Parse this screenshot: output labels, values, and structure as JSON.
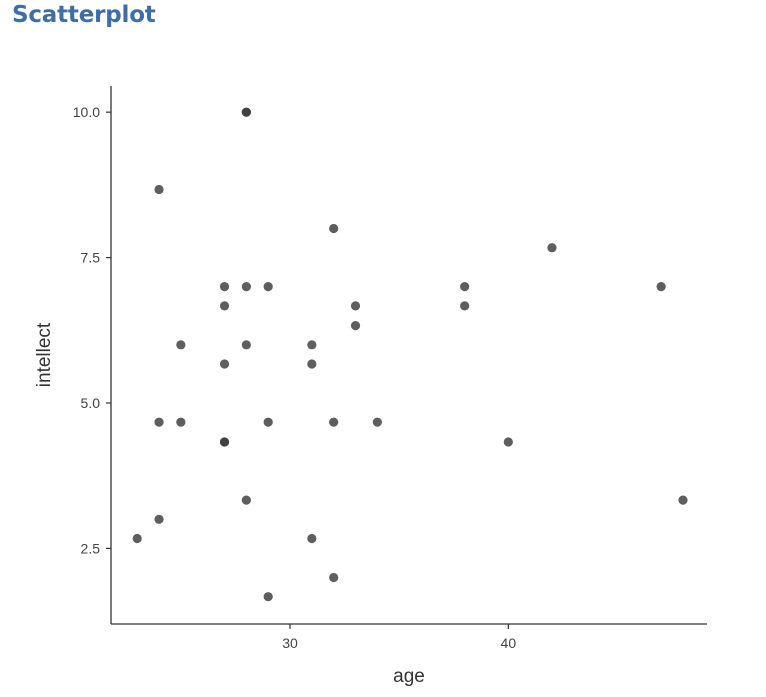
{
  "page": {
    "title": "Scatterplot"
  },
  "chart_data": {
    "type": "scatter",
    "title": "",
    "xlabel": "age",
    "ylabel": "intellect",
    "xlim": [
      21.8,
      49.1
    ],
    "ylim": [
      1.2,
      10.45
    ],
    "x_ticks": [
      30,
      40
    ],
    "x_tick_labels": [
      "30",
      "40"
    ],
    "y_ticks": [
      2.5,
      5.0,
      7.5,
      10.0
    ],
    "y_tick_labels": [
      "2.5",
      "5.0",
      "7.5",
      "10.0"
    ],
    "grid": false,
    "point_color": "#3a3a3a",
    "points": [
      {
        "x": 23,
        "y": 2.67
      },
      {
        "x": 24,
        "y": 8.67
      },
      {
        "x": 24,
        "y": 4.67
      },
      {
        "x": 24,
        "y": 3.0
      },
      {
        "x": 25,
        "y": 6.0
      },
      {
        "x": 25,
        "y": 4.67
      },
      {
        "x": 27,
        "y": 7.0
      },
      {
        "x": 27,
        "y": 6.67
      },
      {
        "x": 27,
        "y": 5.67
      },
      {
        "x": 27,
        "y": 4.33
      },
      {
        "x": 27,
        "y": 4.33
      },
      {
        "x": 28,
        "y": 10.0
      },
      {
        "x": 28,
        "y": 10.0
      },
      {
        "x": 28,
        "y": 7.0
      },
      {
        "x": 28,
        "y": 6.0
      },
      {
        "x": 28,
        "y": 3.33
      },
      {
        "x": 29,
        "y": 7.0
      },
      {
        "x": 29,
        "y": 4.67
      },
      {
        "x": 29,
        "y": 1.67
      },
      {
        "x": 31,
        "y": 6.0
      },
      {
        "x": 31,
        "y": 5.67
      },
      {
        "x": 31,
        "y": 2.67
      },
      {
        "x": 32,
        "y": 8.0
      },
      {
        "x": 32,
        "y": 4.67
      },
      {
        "x": 32,
        "y": 2.0
      },
      {
        "x": 33,
        "y": 6.67
      },
      {
        "x": 33,
        "y": 6.33
      },
      {
        "x": 34,
        "y": 4.67
      },
      {
        "x": 38,
        "y": 7.0
      },
      {
        "x": 38,
        "y": 6.67
      },
      {
        "x": 40,
        "y": 4.33
      },
      {
        "x": 42,
        "y": 7.67
      },
      {
        "x": 47,
        "y": 7.0
      },
      {
        "x": 48,
        "y": 3.33
      }
    ]
  }
}
